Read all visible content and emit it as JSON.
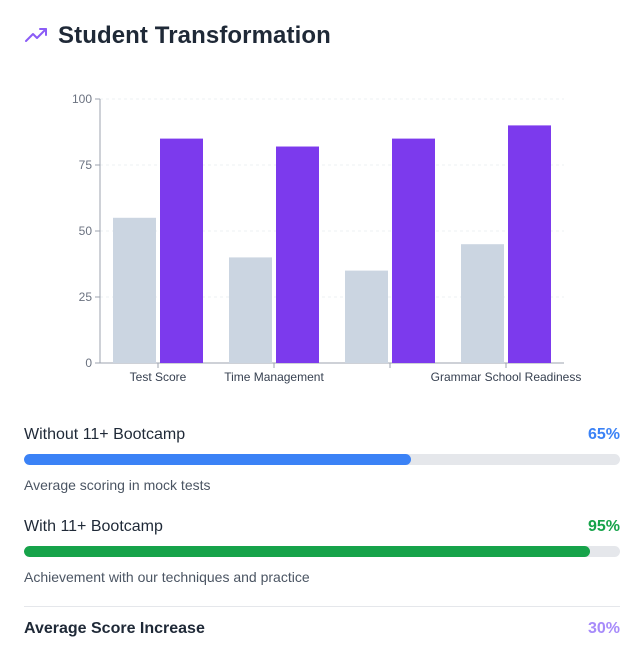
{
  "header": {
    "title": "Student Transformation",
    "icon": "trending-up-icon"
  },
  "chart_data": {
    "type": "bar",
    "categories": [
      "Test Score",
      "Time Management",
      "",
      "Grammar School Readiness"
    ],
    "series": [
      {
        "name": "",
        "color": "#cbd5e1",
        "values": [
          55,
          40,
          35,
          45
        ]
      },
      {
        "name": "",
        "color": "#7c3aed",
        "values": [
          85,
          82,
          85,
          90
        ]
      }
    ],
    "y_ticks": [
      "0",
      "25",
      "50",
      "75",
      "100"
    ],
    "ylim": [
      0,
      100
    ],
    "grid": true,
    "title": "",
    "xlabel": "",
    "ylabel": ""
  },
  "metrics": {
    "without": {
      "label": "Without 11+ Bootcamp",
      "value_text": "65%",
      "value": 65,
      "color": "#3b82f6",
      "desc": "Average scoring in mock tests"
    },
    "with": {
      "label": "With 11+ Bootcamp",
      "value_text": "95%",
      "value": 95,
      "color": "#16a34a",
      "desc": "Achievement with our techniques and practice"
    }
  },
  "summary": {
    "label": "Average Score Increase",
    "value_text": "30%",
    "color": "#a78bfa"
  }
}
